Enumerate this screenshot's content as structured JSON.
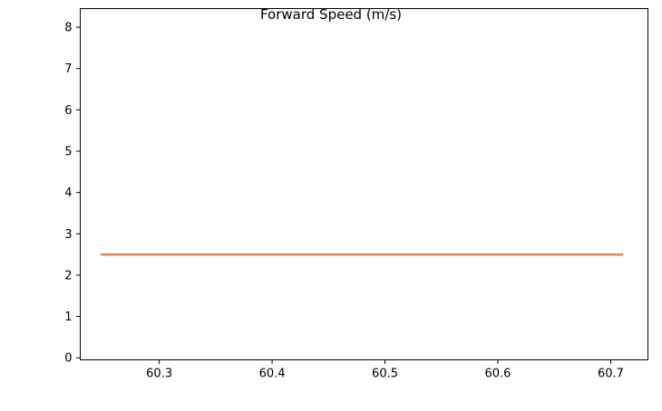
{
  "chart_data": {
    "type": "line",
    "title": "Forward Speed (m/s)",
    "xlabel": "",
    "ylabel": "",
    "xlim": [
      60.23,
      60.733
    ],
    "ylim": [
      -0.05,
      8.45
    ],
    "x_ticks": [
      60.3,
      60.4,
      60.5,
      60.6,
      60.7
    ],
    "x_tick_labels": [
      "60.3",
      "60.4",
      "60.5",
      "60.6",
      "60.7"
    ],
    "y_ticks": [
      0,
      1,
      2,
      3,
      4,
      5,
      6,
      7,
      8
    ],
    "y_tick_labels": [
      "0",
      "1",
      "2",
      "3",
      "4",
      "5",
      "6",
      "7",
      "8"
    ],
    "grid": false,
    "legend": "none",
    "series": [
      {
        "color": "#1f77b4",
        "x": [
          60.248,
          60.711
        ],
        "y": [
          2.5,
          2.5
        ]
      },
      {
        "color": "#dd8452",
        "x": [
          60.248,
          60.711
        ],
        "y": [
          2.5,
          2.5
        ]
      }
    ]
  }
}
